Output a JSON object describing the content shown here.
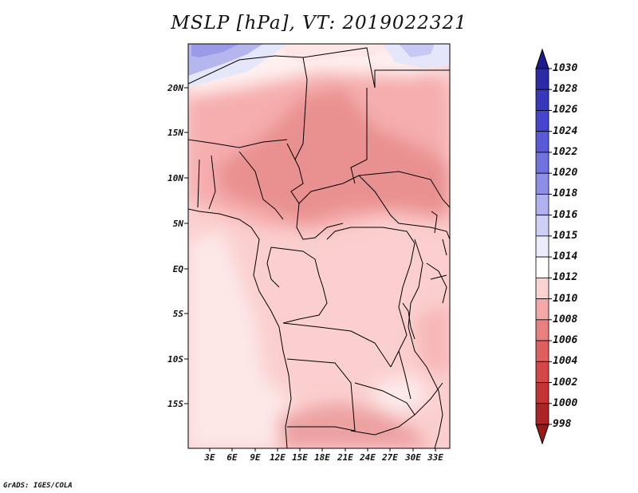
{
  "title": "MSLP [hPa], VT: 2019022321",
  "credit": "GrADS: IGES/COLA",
  "lat_labels": [
    "20N",
    "15N",
    "10N",
    "5N",
    "EQ",
    "5S",
    "10S",
    "15S"
  ],
  "lon_labels": [
    "3E",
    "6E",
    "9E",
    "12E",
    "15E",
    "18E",
    "21E",
    "24E",
    "27E",
    "30E",
    "33E"
  ],
  "colorbar": {
    "labels": [
      "1030",
      "1028",
      "1026",
      "1024",
      "1022",
      "1020",
      "1018",
      "1016",
      "1015",
      "1014",
      "1012",
      "1010",
      "1008",
      "1006",
      "1004",
      "1002",
      "1000",
      "998"
    ],
    "colors": [
      "#1b1b8e",
      "#2b2ba8",
      "#3838bc",
      "#4646cc",
      "#5a5ad8",
      "#7272e0",
      "#8f8fe8",
      "#b1b1f0",
      "#d0d0f6",
      "#ececfc",
      "#ffffff",
      "#fad2d2",
      "#f4a8a8",
      "#e88080",
      "#e06060",
      "#d44848",
      "#c43434",
      "#ac2424",
      "#981818"
    ]
  }
}
